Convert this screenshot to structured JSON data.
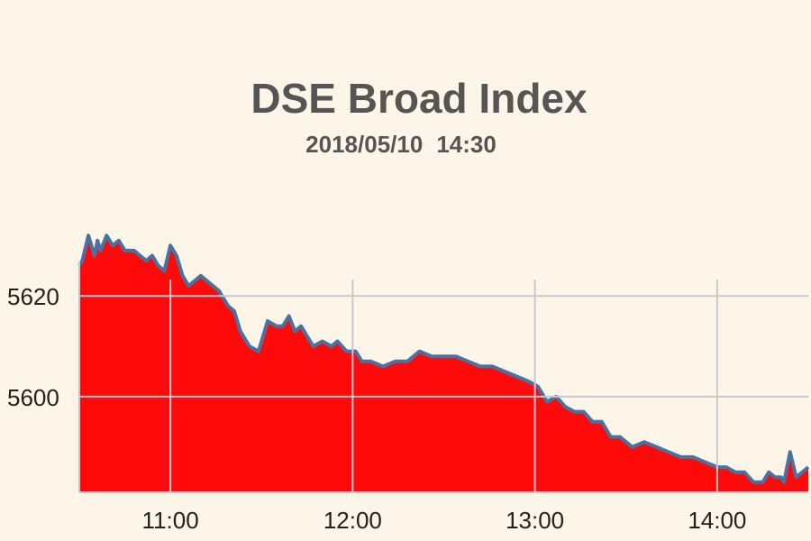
{
  "chart_data": {
    "type": "area",
    "title": "DSE Broad Index",
    "subtitle": "2018/05/10   14:30",
    "xlabel": "",
    "ylabel": "",
    "x_ticks": [
      "11:00",
      "12:00",
      "13:00",
      "14:00"
    ],
    "y_ticks": [
      5600,
      5620
    ],
    "xlim": [
      "10:30",
      "14:30"
    ],
    "ylim": [
      5581,
      5634
    ],
    "grid": true,
    "fill_color": "#ff0a0a",
    "line_color": "#4a72a0",
    "grid_color": "#c8c8d0",
    "series": [
      {
        "x": [
          "10:30",
          "10:31",
          "10:33",
          "10:35",
          "10:36",
          "10:37",
          "10:39",
          "10:41",
          "10:43",
          "10:45",
          "10:48",
          "10:50",
          "10:52",
          "10:54",
          "10:56",
          "10:58",
          "11:00",
          "11:02",
          "11:04",
          "11:06",
          "11:08",
          "11:10",
          "11:12",
          "11:14",
          "11:16",
          "11:19",
          "11:21",
          "11:23",
          "11:26",
          "11:29",
          "11:32",
          "11:35",
          "11:37",
          "11:39",
          "11:41",
          "11:43",
          "11:45",
          "11:47",
          "11:50",
          "11:53",
          "11:55",
          "11:58",
          "12:01",
          "12:03",
          "12:06",
          "12:10",
          "12:14",
          "12:18",
          "12:22",
          "12:26",
          "12:30",
          "12:34",
          "12:38",
          "12:42",
          "12:46",
          "12:50",
          "12:54",
          "12:58",
          "13:01",
          "13:04",
          "13:07",
          "13:10",
          "13:13",
          "13:16",
          "13:19",
          "13:22",
          "13:25",
          "13:28",
          "13:32",
          "13:36",
          "13:40",
          "13:44",
          "13:48",
          "13:52",
          "13:56",
          "14:00",
          "14:03",
          "14:06",
          "14:09",
          "14:12",
          "14:15",
          "14:17",
          "14:19",
          "14:21",
          "14:22",
          "14:24",
          "14:26",
          "14:28",
          "14:30"
        ],
        "values": [
          5626,
          5627,
          5632,
          5628,
          5631,
          5629,
          5632,
          5630,
          5631,
          5629,
          5629,
          5628,
          5627,
          5628,
          5626,
          5625,
          5630,
          5628,
          5624,
          5622,
          5623,
          5624,
          5623,
          5622,
          5621,
          5618,
          5617,
          5613,
          5610,
          5609,
          5615,
          5614,
          5614,
          5616,
          5613,
          5614,
          5612,
          5610,
          5611,
          5610,
          5611,
          5609,
          5609,
          5607,
          5607,
          5606,
          5607,
          5607,
          5609,
          5608,
          5608,
          5608,
          5607,
          5606,
          5606,
          5605,
          5604,
          5603,
          5602,
          5599,
          5600,
          5598,
          5597,
          5597,
          5595,
          5595,
          5592,
          5592,
          5590,
          5591,
          5590,
          5589,
          5588,
          5588,
          5587,
          5586,
          5586,
          5585,
          5585,
          5583,
          5583,
          5585,
          5584,
          5584,
          5583,
          5589,
          5584,
          5585,
          5586
        ]
      }
    ]
  }
}
